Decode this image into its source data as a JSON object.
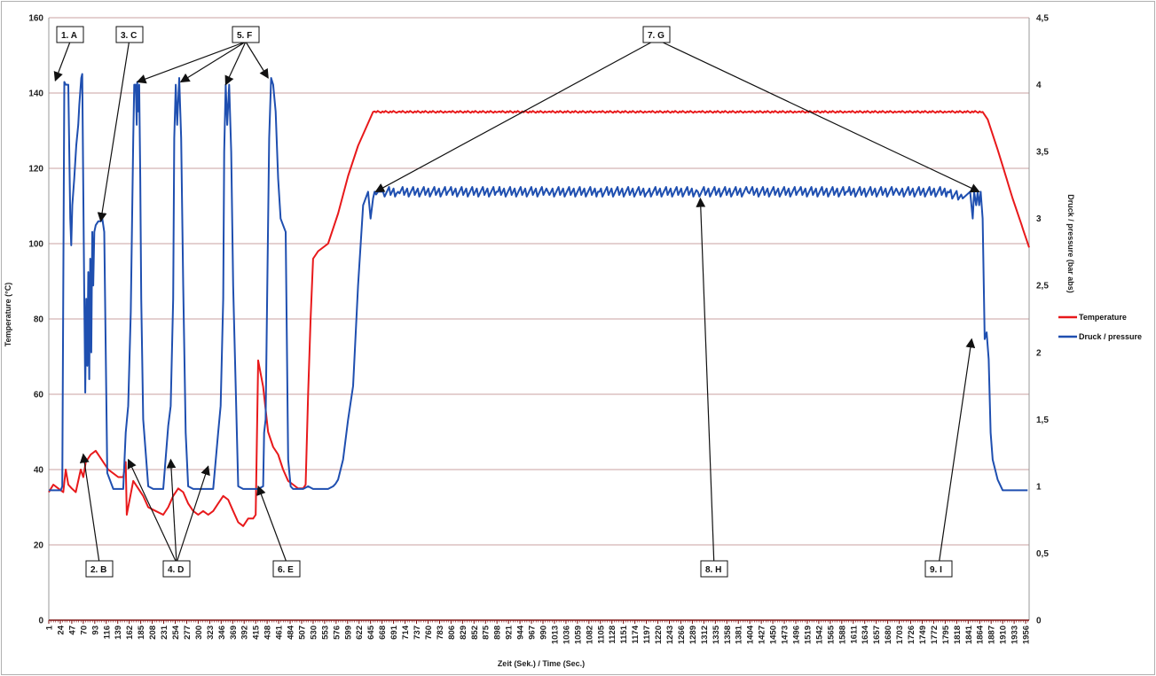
{
  "chart_data": {
    "type": "line",
    "xlabel": "Zeit (Sek.) / Time (Sec.)",
    "ylabel_left": "Temperature (°C)",
    "ylabel_right": "Druck / pressure (bar abs)",
    "x_ticks": [
      "1",
      "24",
      "47",
      "70",
      "93",
      "116",
      "139",
      "162",
      "185",
      "208",
      "231",
      "254",
      "277",
      "300",
      "323",
      "346",
      "369",
      "392",
      "415",
      "438",
      "461",
      "484",
      "507",
      "530",
      "553",
      "576",
      "599",
      "622",
      "645",
      "668",
      "691",
      "714",
      "737",
      "760",
      "783",
      "806",
      "829",
      "852",
      "875",
      "898",
      "921",
      "944",
      "967",
      "990",
      "1013",
      "1036",
      "1059",
      "1082",
      "1105",
      "1128",
      "1151",
      "1174",
      "1197",
      "1220",
      "1243",
      "1266",
      "1289",
      "1312",
      "1335",
      "1358",
      "1381",
      "1404",
      "1427",
      "1450",
      "1473",
      "1496",
      "1519",
      "1542",
      "1565",
      "1588",
      "1611",
      "1634",
      "1657",
      "1680",
      "1703",
      "1726",
      "1749",
      "1772",
      "1795",
      "1818",
      "1841",
      "1864",
      "1887",
      "1910",
      "1933",
      "1956"
    ],
    "xlim": [
      1,
      1963
    ],
    "ylim_left": [
      0,
      160
    ],
    "y_ticks_left": [
      "0",
      "20",
      "40",
      "60",
      "80",
      "100",
      "120",
      "140",
      "160"
    ],
    "ylim_right": [
      0,
      4.5
    ],
    "y_ticks_right": [
      "0",
      "0,5",
      "1",
      "1,5",
      "2",
      "2,5",
      "3",
      "3,5",
      "4",
      "4,5"
    ],
    "grid": true,
    "legend_position": "right",
    "series": [
      {
        "name": "Temperature",
        "color": "#e8191b",
        "axis": "left",
        "x": [
          1,
          10,
          20,
          30,
          35,
          40,
          47,
          55,
          65,
          70,
          75,
          85,
          95,
          105,
          120,
          140,
          150,
          155,
          157,
          160,
          170,
          180,
          190,
          200,
          215,
          230,
          240,
          250,
          260,
          270,
          280,
          290,
          300,
          310,
          320,
          330,
          340,
          350,
          360,
          370,
          380,
          390,
          400,
          410,
          415,
          420,
          430,
          440,
          450,
          460,
          470,
          480,
          490,
          500,
          505,
          510,
          515,
          520,
          525,
          530,
          540,
          560,
          580,
          600,
          620,
          640,
          650,
          700,
          800,
          900,
          1000,
          1100,
          1200,
          1300,
          1400,
          1500,
          1600,
          1700,
          1800,
          1870,
          1880,
          1900,
          1930,
          1963
        ],
        "y": [
          34,
          36,
          35,
          34,
          40,
          36,
          35,
          34,
          40,
          38,
          42,
          44,
          45,
          43,
          40,
          38,
          38,
          42,
          28,
          30,
          37,
          35,
          33,
          30,
          29,
          28,
          30,
          33,
          35,
          34,
          31,
          29,
          28,
          29,
          28,
          29,
          31,
          33,
          32,
          29,
          26,
          25,
          27,
          27,
          28,
          69,
          62,
          50,
          46,
          44,
          40,
          37,
          36,
          35,
          35,
          35,
          36,
          60,
          80,
          96,
          98,
          100,
          108,
          118,
          126,
          132,
          135,
          135,
          135,
          135,
          135,
          135,
          135,
          135,
          135,
          135,
          135,
          135,
          135,
          135,
          133,
          125,
          112,
          99
        ]
      },
      {
        "name": "Druck / pressure",
        "color": "#1f4fb0",
        "axis": "right",
        "x": [
          1,
          25,
          28,
          32,
          35,
          40,
          42,
          44,
          46,
          48,
          52,
          56,
          60,
          62,
          64,
          66,
          68,
          70,
          72,
          74,
          76,
          78,
          80,
          82,
          84,
          86,
          88,
          90,
          92,
          95,
          100,
          105,
          108,
          112,
          118,
          130,
          140,
          150,
          155,
          160,
          165,
          170,
          172,
          175,
          177,
          178,
          180,
          182,
          184,
          186,
          190,
          200,
          210,
          220,
          230,
          240,
          245,
          250,
          252,
          255,
          258,
          262,
          266,
          270,
          275,
          280,
          290,
          300,
          310,
          320,
          330,
          340,
          345,
          350,
          352,
          355,
          358,
          362,
          366,
          370,
          380,
          390,
          400,
          410,
          420,
          430,
          432,
          435,
          438,
          442,
          446,
          450,
          455,
          460,
          465,
          470,
          475,
          480,
          485,
          490,
          500,
          510,
          520,
          530,
          540,
          550,
          560,
          570,
          575,
          580,
          590,
          600,
          610,
          620,
          630,
          640,
          645,
          650,
          653,
          656,
          660,
          665,
          670,
          700,
          800,
          900,
          1000,
          1100,
          1200,
          1300,
          1400,
          1500,
          1600,
          1700,
          1800,
          1830,
          1845,
          1850,
          1853,
          1857,
          1860,
          1863,
          1866,
          1870,
          1874,
          1878,
          1882,
          1886,
          1890,
          1900,
          1910,
          1960
        ],
        "y": [
          0.97,
          0.97,
          1.0,
          4.02,
          4.0,
          4.0,
          3.5,
          3.0,
          2.8,
          3.1,
          3.3,
          3.55,
          3.7,
          3.85,
          3.95,
          4.05,
          4.08,
          3.2,
          2.4,
          1.7,
          2.4,
          1.9,
          2.6,
          1.8,
          2.7,
          2.0,
          2.9,
          2.5,
          2.9,
          2.95,
          2.98,
          2.98,
          3.0,
          2.9,
          1.1,
          0.98,
          0.98,
          0.98,
          1.4,
          1.6,
          2.3,
          3.6,
          4.0,
          4.0,
          3.7,
          4.02,
          3.8,
          4.0,
          3.3,
          2.4,
          1.5,
          1.0,
          0.98,
          0.98,
          0.98,
          1.45,
          1.6,
          2.4,
          3.6,
          4.0,
          3.7,
          4.05,
          3.6,
          2.5,
          1.4,
          1.0,
          0.98,
          0.98,
          0.98,
          0.98,
          0.98,
          1.4,
          1.6,
          2.4,
          3.5,
          4.0,
          3.7,
          4.0,
          3.5,
          2.5,
          1.0,
          0.98,
          0.98,
          0.98,
          0.98,
          1.0,
          1.4,
          1.5,
          2.4,
          3.6,
          4.05,
          4.0,
          3.8,
          3.3,
          3.0,
          2.95,
          2.9,
          1.2,
          1.0,
          0.98,
          0.98,
          0.98,
          1.0,
          0.98,
          0.98,
          0.98,
          0.98,
          1.0,
          1.02,
          1.05,
          1.2,
          1.5,
          1.75,
          2.5,
          3.1,
          3.2,
          3.0,
          3.15,
          3.2,
          3.18,
          3.2,
          3.2,
          3.2,
          3.2,
          3.2,
          3.2,
          3.2,
          3.2,
          3.2,
          3.2,
          3.2,
          3.2,
          3.2,
          3.2,
          3.2,
          3.15,
          3.2,
          3.0,
          3.2,
          3.1,
          3.2,
          3.1,
          3.2,
          3.0,
          2.1,
          2.15,
          1.95,
          1.4,
          1.2,
          1.05,
          0.97,
          0.97
        ]
      }
    ],
    "annotations": [
      {
        "label": "1. A",
        "box": [
          64,
          30
        ],
        "targets": [
          [
            14,
            4.03
          ]
        ]
      },
      {
        "label": "3. C",
        "box": [
          131,
          30
        ],
        "targets": [
          [
            105,
            2.98
          ]
        ]
      },
      {
        "label": "5. F",
        "box": [
          262,
          30
        ],
        "targets": [
          [
            178,
            4.02
          ],
          [
            265,
            4.02
          ],
          [
            355,
            4.0
          ],
          [
            440,
            4.05
          ]
        ]
      },
      {
        "label": "7. G",
        "box": [
          725,
          30
        ],
        "targets": [
          [
            655,
            3.2
          ],
          [
            1863,
            3.2
          ]
        ]
      },
      {
        "label": "2. B",
        "box": [
          97,
          633
        ],
        "targets": [
          [
            70,
            1.24
          ]
        ]
      },
      {
        "label": "4. D",
        "box": [
          184,
          633
        ],
        "targets": [
          [
            160,
            1.2
          ],
          [
            245,
            1.2
          ],
          [
            320,
            1.15
          ]
        ]
      },
      {
        "label": "6. E",
        "box": [
          308,
          633
        ],
        "targets": [
          [
            420,
            1.0
          ]
        ]
      },
      {
        "label": "8. H",
        "box": [
          790,
          633
        ],
        "targets": [
          [
            1305,
            3.15
          ]
        ]
      },
      {
        "label": "9. I",
        "box": [
          1043,
          633
        ],
        "targets": [
          [
            1848,
            2.1
          ]
        ]
      }
    ]
  }
}
